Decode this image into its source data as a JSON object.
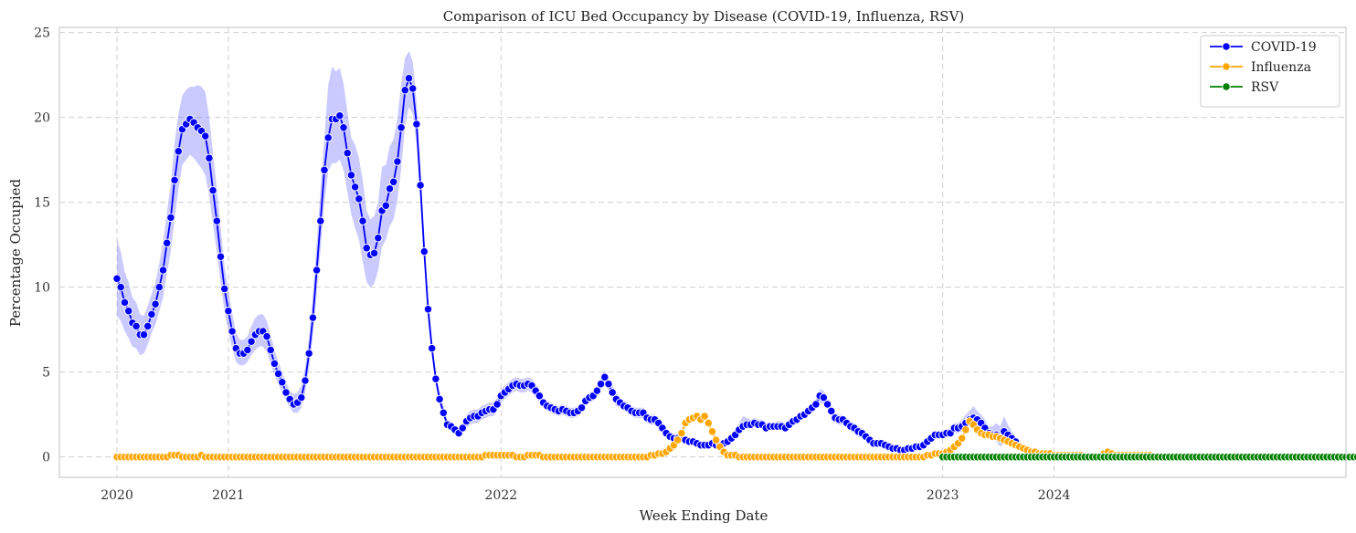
{
  "chart_data": {
    "type": "line",
    "title": "Comparison of ICU Bed Occupancy by Disease (COVID-19, Influenza, RSV)",
    "xlabel": "Week Ending Date",
    "ylabel": "Percentage Occupied",
    "ylim": [
      -1.2,
      25.3
    ],
    "yticks": [
      0,
      5,
      10,
      15,
      20,
      25
    ],
    "xticks": [
      {
        "label": "2020",
        "pos": 0
      },
      {
        "label": "2021",
        "pos": 29
      },
      {
        "label": "2022",
        "pos": 100
      },
      {
        "label": "2023",
        "pos": 215
      },
      {
        "label": "2024",
        "pos": 244
      }
    ],
    "xlim": [
      -15,
      320
    ],
    "grid": true,
    "legend_position": "top-right",
    "series": [
      {
        "name": "COVID-19",
        "color": "#0000ff",
        "band_color": "#7b7bff",
        "start": 0,
        "values": [
          10.5,
          10.0,
          9.1,
          8.6,
          7.9,
          7.7,
          7.2,
          7.2,
          7.7,
          8.4,
          9.0,
          10.0,
          11.0,
          12.6,
          14.1,
          16.3,
          18.0,
          19.3,
          19.6,
          19.9,
          19.7,
          19.4,
          19.2,
          18.9,
          17.6,
          15.7,
          13.9,
          11.8,
          9.9,
          8.6,
          7.4,
          6.4,
          6.1,
          6.1,
          6.3,
          6.8,
          7.2,
          7.4,
          7.4,
          7.1,
          6.3,
          5.5,
          4.9,
          4.4,
          3.8,
          3.4,
          3.1,
          3.2,
          3.5,
          4.5,
          6.1,
          8.2,
          11.0,
          13.9,
          16.9,
          18.8,
          19.9,
          19.9,
          20.1,
          19.4,
          17.9,
          16.6,
          15.9,
          15.2,
          13.9,
          12.3,
          11.9,
          12.0,
          12.9,
          14.5,
          14.8,
          15.8,
          16.2,
          17.4,
          19.4,
          21.6,
          22.3,
          21.7,
          19.6,
          16.0,
          12.1,
          8.7,
          6.4,
          4.6,
          3.4,
          2.6,
          1.9,
          1.8,
          1.6,
          1.4,
          1.7,
          2.1,
          2.3,
          2.4,
          2.4,
          2.6,
          2.7,
          2.8,
          2.8,
          3.1,
          3.6,
          3.8,
          4.0,
          4.2,
          4.3,
          4.2,
          4.2,
          4.3,
          4.2,
          3.9,
          3.6,
          3.2,
          3.0,
          2.9,
          2.8,
          2.7,
          2.8,
          2.7,
          2.6,
          2.6,
          2.7,
          2.9,
          3.3,
          3.5,
          3.6,
          3.9,
          4.3,
          4.7,
          4.3,
          3.8,
          3.4,
          3.2,
          3.0,
          2.9,
          2.7,
          2.6,
          2.6,
          2.6,
          2.3,
          2.2,
          2.2,
          2.0,
          1.7,
          1.4,
          1.2,
          1.1,
          1.1,
          1.1,
          1.0,
          0.9,
          0.9,
          0.8,
          0.7,
          0.7,
          0.7,
          0.8,
          0.7,
          0.7,
          0.8,
          0.9,
          1.1,
          1.3,
          1.6,
          1.8,
          1.9,
          1.9,
          2.0,
          1.9,
          1.9,
          1.7,
          1.8,
          1.8,
          1.8,
          1.8,
          1.7,
          1.9,
          2.1,
          2.2,
          2.4,
          2.5,
          2.7,
          2.9,
          3.1,
          3.6,
          3.5,
          3.1,
          2.7,
          2.3,
          2.2,
          2.2,
          2.0,
          1.8,
          1.7,
          1.5,
          1.4,
          1.2,
          1.0,
          0.8,
          0.8,
          0.8,
          0.7,
          0.6,
          0.5,
          0.5,
          0.4,
          0.4,
          0.5,
          0.5,
          0.6,
          0.6,
          0.7,
          0.9,
          1.1,
          1.3,
          1.3,
          1.3,
          1.4,
          1.4,
          1.7,
          1.7,
          1.8,
          2.0,
          2.2,
          2.3,
          2.2,
          2.0,
          1.7,
          1.4,
          1.3,
          1.3,
          1.1,
          1.5,
          1.3,
          1.1,
          0.9
        ],
        "lower": [
          8.3,
          8.0,
          7.4,
          7.0,
          6.5,
          6.4,
          6.0,
          6.1,
          6.6,
          7.3,
          7.8,
          8.6,
          9.4,
          10.8,
          12.1,
          14.0,
          15.8,
          17.2,
          17.5,
          17.8,
          17.6,
          17.3,
          17.0,
          16.6,
          15.4,
          13.7,
          12.1,
          10.2,
          8.6,
          7.4,
          6.4,
          5.6,
          5.4,
          5.4,
          5.6,
          6.0,
          6.3,
          6.5,
          6.5,
          6.2,
          5.5,
          4.8,
          4.3,
          3.8,
          3.3,
          2.9,
          2.6,
          2.6,
          2.9,
          3.8,
          5.2,
          7.1,
          9.6,
          12.2,
          15.0,
          16.8,
          17.3,
          17.3,
          17.5,
          16.9,
          15.6,
          14.3,
          13.5,
          12.8,
          11.5,
          10.3,
          10.0,
          10.2,
          11.0,
          12.4,
          12.8,
          13.6,
          14.0,
          15.1,
          17.0,
          19.5,
          20.6,
          20.2,
          18.4,
          14.9,
          11.3,
          8.0,
          5.9,
          4.2,
          3.1,
          2.3,
          1.7,
          1.6,
          1.4,
          1.2,
          1.4,
          1.7,
          1.9,
          2.0,
          2.0,
          2.2,
          2.3,
          2.4,
          2.4,
          2.7,
          3.2,
          3.4,
          3.6,
          3.8,
          3.9,
          3.8,
          3.8,
          3.9,
          3.8,
          3.5,
          3.2,
          2.9,
          2.7,
          2.6,
          2.5,
          2.4,
          2.5,
          2.4,
          2.3,
          2.3,
          2.4,
          2.6,
          3.0,
          3.2,
          3.3,
          3.5,
          3.9,
          4.3,
          3.9,
          3.4,
          3.0,
          2.9,
          2.7,
          2.6,
          2.4,
          2.3,
          2.3,
          2.3,
          2.0,
          1.9,
          1.9,
          1.7,
          1.5,
          1.2,
          1.0,
          1.0,
          1.0,
          1.0,
          0.9,
          0.8,
          0.8,
          0.7,
          0.6,
          0.6,
          0.6,
          0.7,
          0.6,
          0.6,
          0.7,
          0.8,
          1.0,
          1.2,
          1.4,
          1.6,
          1.7,
          1.7,
          1.8,
          1.7,
          1.7,
          1.5,
          1.6,
          1.6,
          1.6,
          1.6,
          1.5,
          1.7,
          1.9,
          2.0,
          2.2,
          2.3,
          2.5,
          2.7,
          2.8,
          3.2,
          3.1,
          2.8,
          2.4,
          2.0,
          1.9,
          1.9,
          1.7,
          1.5,
          1.4,
          1.2,
          1.1,
          1.0,
          0.8,
          0.6,
          0.6,
          0.6,
          0.5,
          0.4,
          0.4,
          0.4,
          0.3,
          0.3,
          0.4,
          0.4,
          0.5,
          0.5,
          0.6,
          0.8,
          1.0,
          1.1,
          1.1,
          1.1,
          1.2,
          1.2,
          1.4,
          1.4,
          1.5,
          1.6,
          1.8,
          1.9,
          1.8,
          1.6,
          1.3,
          1.1,
          1.0,
          0.9,
          0.6,
          0.8,
          0.7,
          0.7,
          0.6
        ],
        "upper": [
          12.8,
          12.1,
          10.9,
          10.3,
          9.4,
          9.1,
          8.4,
          8.3,
          8.9,
          9.6,
          10.3,
          11.4,
          12.7,
          14.4,
          16.1,
          18.5,
          20.2,
          21.3,
          21.6,
          21.8,
          21.8,
          21.9,
          21.8,
          21.5,
          20.0,
          17.9,
          15.8,
          13.5,
          11.2,
          9.8,
          8.5,
          7.3,
          6.9,
          6.9,
          7.1,
          7.7,
          8.2,
          8.4,
          8.4,
          8.0,
          7.2,
          6.3,
          5.6,
          5.0,
          4.4,
          3.9,
          3.7,
          3.8,
          4.2,
          5.3,
          7.0,
          9.5,
          12.6,
          15.8,
          18.8,
          21.9,
          23.0,
          22.7,
          22.9,
          22.0,
          20.3,
          18.8,
          18.4,
          17.6,
          16.3,
          14.5,
          14.0,
          14.2,
          15.0,
          17.1,
          17.2,
          18.3,
          18.7,
          19.9,
          22.0,
          23.5,
          23.9,
          23.3,
          20.9,
          17.2,
          13.0,
          9.4,
          6.9,
          5.0,
          3.8,
          3.0,
          2.2,
          2.1,
          1.9,
          1.7,
          2.0,
          2.5,
          2.7,
          2.8,
          2.8,
          3.0,
          3.1,
          3.2,
          3.2,
          3.5,
          4.0,
          4.2,
          4.4,
          4.6,
          4.7,
          4.6,
          4.6,
          4.7,
          4.6,
          4.3,
          4.0,
          3.5,
          3.3,
          3.2,
          3.1,
          3.0,
          3.1,
          3.0,
          2.9,
          2.9,
          3.0,
          3.2,
          3.6,
          3.8,
          3.9,
          4.3,
          4.7,
          5.1,
          4.7,
          4.2,
          3.8,
          3.5,
          3.3,
          3.2,
          3.0,
          2.9,
          2.9,
          2.9,
          2.6,
          2.5,
          2.5,
          2.3,
          2.0,
          1.6,
          1.4,
          1.3,
          1.3,
          1.3,
          1.2,
          1.1,
          1.1,
          1.0,
          0.9,
          0.9,
          0.9,
          1.0,
          0.9,
          0.9,
          1.0,
          1.1,
          1.4,
          1.6,
          2.0,
          2.4,
          2.3,
          2.2,
          2.3,
          2.2,
          2.2,
          2.0,
          2.0,
          2.0,
          2.1,
          2.1,
          2.0,
          2.1,
          2.3,
          2.4,
          2.6,
          2.8,
          3.0,
          3.2,
          3.4,
          4.0,
          3.9,
          3.5,
          3.0,
          2.6,
          2.5,
          2.5,
          2.3,
          2.1,
          2.0,
          1.8,
          1.7,
          1.4,
          1.2,
          1.0,
          1.0,
          1.0,
          0.9,
          0.8,
          0.7,
          0.7,
          0.6,
          0.6,
          0.7,
          0.7,
          0.8,
          0.8,
          0.9,
          1.1,
          1.3,
          1.5,
          1.5,
          1.5,
          1.6,
          1.7,
          2.0,
          2.0,
          2.2,
          2.5,
          2.7,
          3.0,
          2.7,
          2.5,
          2.2,
          1.8,
          1.8,
          2.0,
          1.8,
          2.4,
          1.9,
          1.5,
          1.2
        ]
      },
      {
        "name": "Influenza",
        "color": "#ffa500",
        "band_color": "#ffd27a",
        "start": 0,
        "values": [
          0.0,
          0.0,
          0.0,
          0.0,
          0.0,
          0.0,
          0.0,
          0.0,
          0.0,
          0.0,
          0.0,
          0.0,
          0.0,
          0.0,
          0.1,
          0.1,
          0.1,
          0.0,
          0.0,
          0.0,
          0.0,
          0.0,
          0.1,
          0.0,
          0.0,
          0.0,
          0.0,
          0.0,
          0.0,
          0.0,
          0.0,
          0.0,
          0.0,
          0.0,
          0.0,
          0.0,
          0.0,
          0.0,
          0.0,
          0.0,
          0.0,
          0.0,
          0.0,
          0.0,
          0.0,
          0.0,
          0.0,
          0.0,
          0.0,
          0.0,
          0.0,
          0.0,
          0.0,
          0.0,
          0.0,
          0.0,
          0.0,
          0.0,
          0.0,
          0.0,
          0.0,
          0.0,
          0.0,
          0.0,
          0.0,
          0.0,
          0.0,
          0.0,
          0.0,
          0.0,
          0.0,
          0.0,
          0.0,
          0.0,
          0.0,
          0.0,
          0.0,
          0.0,
          0.0,
          0.0,
          0.0,
          0.0,
          0.0,
          0.0,
          0.0,
          0.0,
          0.0,
          0.0,
          0.0,
          0.0,
          0.0,
          0.0,
          0.0,
          0.0,
          0.0,
          0.0,
          0.1,
          0.1,
          0.1,
          0.1,
          0.1,
          0.1,
          0.1,
          0.1,
          0.0,
          0.0,
          0.0,
          0.1,
          0.1,
          0.1,
          0.1,
          0.0,
          0.0,
          0.0,
          0.0,
          0.0,
          0.0,
          0.0,
          0.0,
          0.0,
          0.0,
          0.0,
          0.0,
          0.0,
          0.0,
          0.0,
          0.0,
          0.0,
          0.0,
          0.0,
          0.0,
          0.0,
          0.0,
          0.0,
          0.0,
          0.0,
          0.0,
          0.0,
          0.0,
          0.1,
          0.1,
          0.2,
          0.2,
          0.3,
          0.5,
          0.7,
          1.0,
          1.4,
          2.0,
          2.2,
          2.3,
          2.4,
          2.2,
          2.4,
          2.0,
          1.5,
          1.0,
          0.6,
          0.3,
          0.1,
          0.1,
          0.1,
          0.0,
          0.0,
          0.0,
          0.0,
          0.0,
          0.0,
          0.0,
          0.0,
          0.0,
          0.0,
          0.0,
          0.0,
          0.0,
          0.0,
          0.0,
          0.0,
          0.0,
          0.0,
          0.0,
          0.0,
          0.0,
          0.0,
          0.0,
          0.0,
          0.0,
          0.0,
          0.0,
          0.0,
          0.0,
          0.0,
          0.0,
          0.0,
          0.0,
          0.0,
          0.0,
          0.0,
          0.0,
          0.0,
          0.0,
          0.0,
          0.0,
          0.0,
          0.0,
          0.0,
          0.0,
          0.0,
          0.0,
          0.0,
          0.0,
          0.1,
          0.1,
          0.2,
          0.2,
          0.2,
          0.3,
          0.4,
          0.6,
          0.8,
          1.1,
          1.6,
          2.1,
          1.9,
          1.6,
          1.4,
          1.3,
          1.3,
          1.2,
          1.2,
          1.1,
          1.0,
          0.9,
          0.8,
          0.7,
          0.6,
          0.5,
          0.4,
          0.3,
          0.3,
          0.2,
          0.2,
          0.2,
          0.2,
          0.1,
          0.1,
          0.1,
          0.1,
          0.1,
          0.1,
          0.1,
          0.1,
          0.0,
          0.0,
          0.0,
          0.0,
          0.0,
          0.2,
          0.3,
          0.2,
          0.1,
          0.1,
          0.1,
          0.1,
          0.1,
          0.1,
          0.1,
          0.1,
          0.1,
          0.1
        ]
      },
      {
        "name": "RSV",
        "color": "#008000",
        "band_color": "#7fbf7f",
        "start": 215,
        "values": [
          0.0,
          0.0,
          0.0,
          0.0,
          0.0,
          0.0,
          0.0,
          0.0,
          0.0,
          0.0,
          0.0,
          0.0,
          0.0,
          0.0,
          0.0,
          0.0,
          0.0,
          0.0,
          0.0,
          0.0,
          0.0,
          0.0,
          0.0,
          0.0,
          0.0,
          0.0,
          0.0,
          0.0,
          0.0,
          0.0,
          0.0,
          0.0,
          0.0,
          0.0,
          0.0,
          0.0,
          0.0,
          0.0,
          0.0,
          0.0,
          0.0,
          0.0,
          0.0,
          0.0,
          0.0,
          0.0,
          0.0,
          0.0,
          0.0,
          0.0,
          0.0,
          0.0,
          0.0,
          0.0,
          0.0,
          0.0,
          0.0,
          0.0,
          0.0,
          0.0,
          0.0,
          0.0,
          0.0,
          0.0,
          0.0,
          0.0,
          0.0,
          0.0,
          0.0,
          0.0,
          0.0,
          0.0,
          0.0,
          0.0,
          0.0,
          0.0,
          0.0,
          0.0,
          0.0,
          0.0,
          0.0,
          0.0,
          0.0,
          0.0,
          0.0,
          0.0,
          0.0,
          0.0,
          0.0,
          0.0,
          0.0,
          0.0,
          0.0,
          0.0,
          0.0,
          0.0,
          0.0,
          0.0,
          0.0,
          0.0,
          0.0,
          0.0,
          0.0,
          0.0,
          0.0,
          0.0,
          0.0,
          0.0,
          0.0,
          0.0,
          0.0,
          0.0,
          0.0,
          0.0,
          0.0,
          0.0,
          0.0,
          0.0,
          0.0,
          0.0,
          0.0,
          0.0,
          0.0,
          0.0,
          0.0,
          0.0,
          0.0,
          0.0,
          0.0,
          0.0,
          0.0,
          0.0,
          0.0,
          0.0,
          0.0,
          0.0,
          0.0,
          0.0,
          0.1,
          0.1,
          0.1,
          0.1,
          0.1,
          0.2,
          0.2,
          0.2
        ]
      }
    ]
  }
}
